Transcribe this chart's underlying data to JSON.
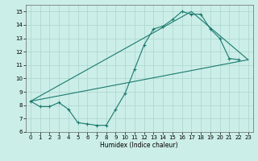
{
  "xlabel": "Humidex (Indice chaleur)",
  "background_color": "#cceee8",
  "grid_color": "#aad4ce",
  "line_color": "#1a7a6e",
  "xlim": [
    -0.5,
    23.5
  ],
  "ylim": [
    6,
    15.5
  ],
  "xticks": [
    0,
    1,
    2,
    3,
    4,
    5,
    6,
    7,
    8,
    9,
    10,
    11,
    12,
    13,
    14,
    15,
    16,
    17,
    18,
    19,
    20,
    21,
    22,
    23
  ],
  "yticks": [
    6,
    7,
    8,
    9,
    10,
    11,
    12,
    13,
    14,
    15
  ],
  "line1_x": [
    0,
    1,
    2,
    3,
    4,
    5,
    6,
    7,
    8,
    9,
    10,
    11,
    12,
    13,
    14,
    15,
    16,
    17,
    18,
    19,
    20,
    21,
    22
  ],
  "line1_y": [
    8.3,
    7.9,
    7.9,
    8.2,
    7.7,
    6.7,
    6.6,
    6.5,
    6.5,
    7.7,
    8.9,
    10.7,
    12.5,
    13.7,
    13.9,
    14.4,
    15.0,
    14.8,
    14.8,
    13.7,
    13.0,
    11.5,
    11.4
  ],
  "line2_x": [
    0,
    23
  ],
  "line2_y": [
    8.3,
    11.4
  ],
  "line3_x": [
    0,
    17,
    23
  ],
  "line3_y": [
    8.3,
    15.0,
    11.4
  ]
}
